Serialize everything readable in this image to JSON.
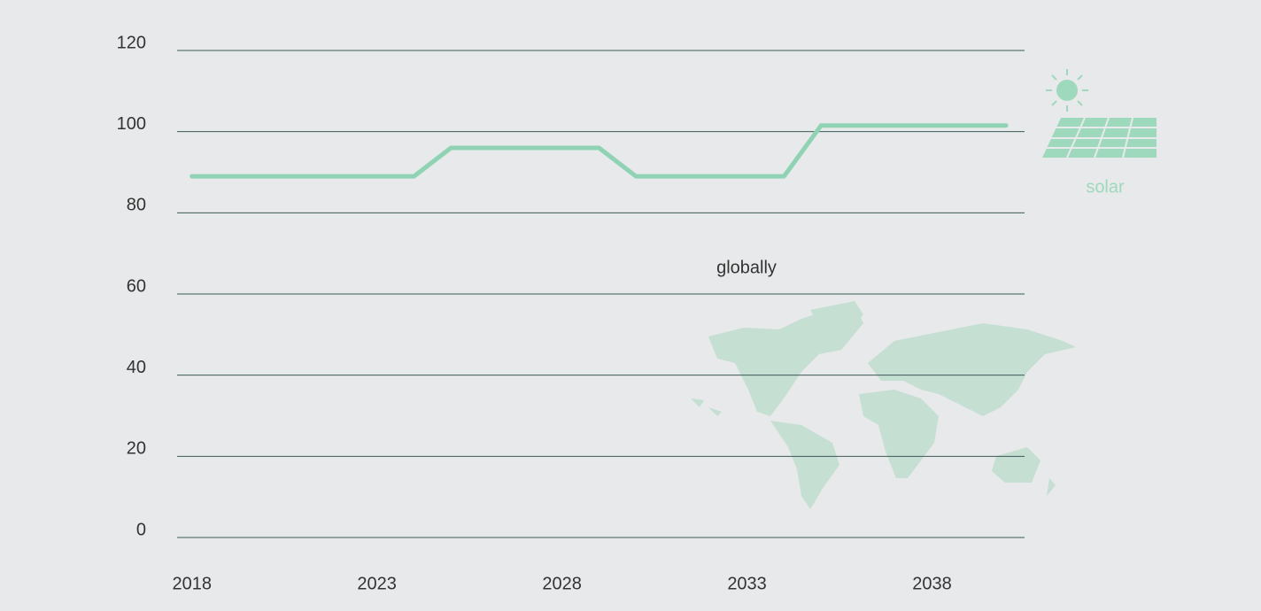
{
  "chart_data": {
    "type": "line",
    "x": [
      2018,
      2019,
      2020,
      2021,
      2022,
      2023,
      2024,
      2025,
      2026,
      2027,
      2028,
      2029,
      2030,
      2031,
      2032,
      2033,
      2034,
      2035,
      2036,
      2037,
      2038,
      2039,
      2040
    ],
    "values": [
      89,
      89,
      89,
      89,
      89,
      89,
      89,
      96,
      96,
      96,
      96,
      96,
      89,
      89,
      89,
      89,
      89,
      101.5,
      101.5,
      101.5,
      101.5,
      101.5,
      101.5
    ],
    "color": "#8fd3b4",
    "xlim": [
      2017.6,
      2040.5
    ],
    "xticks": [
      2018,
      2023,
      2028,
      2033,
      2038
    ],
    "ylim": [
      0,
      120
    ],
    "yticks": [
      0,
      20,
      40,
      60,
      80,
      100,
      120
    ],
    "grid": true,
    "annotations": [
      "globally",
      "solar"
    ]
  }
}
